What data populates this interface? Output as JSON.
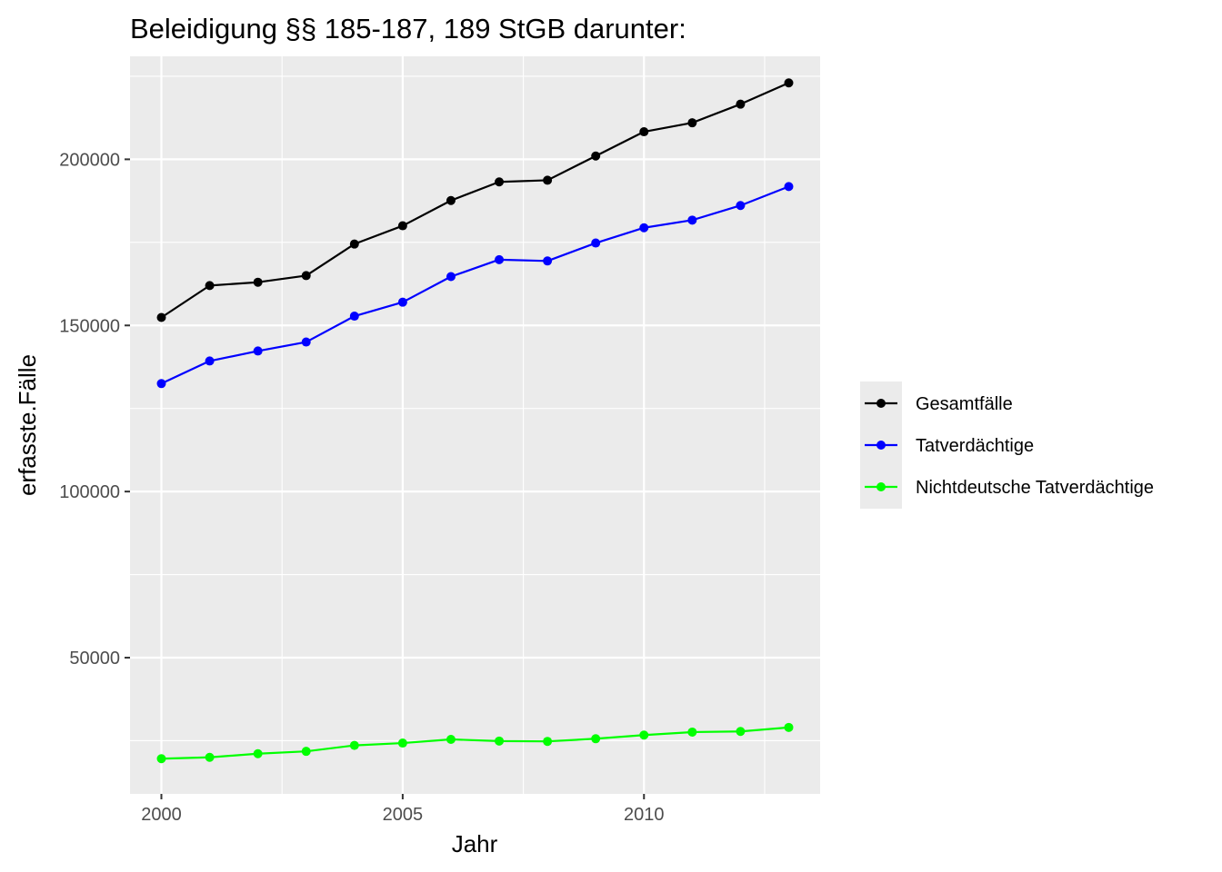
{
  "chart_data": {
    "type": "line",
    "title": "Beleidigung §§ 185-187, 189 StGB darunter:",
    "xlabel": "Jahr",
    "ylabel": "erfasste.Fälle",
    "x": [
      2000,
      2001,
      2002,
      2003,
      2004,
      2005,
      2006,
      2007,
      2008,
      2009,
      2010,
      2011,
      2012,
      2013
    ],
    "xlim": [
      1999.35,
      2013.65
    ],
    "ylim": [
      9000,
      231000
    ],
    "x_ticks": [
      {
        "value": 2000,
        "label": "2000"
      },
      {
        "value": 2005,
        "label": "2005"
      },
      {
        "value": 2010,
        "label": "2010"
      }
    ],
    "y_ticks": [
      {
        "value": 50000,
        "label": "50000"
      },
      {
        "value": 100000,
        "label": "100000"
      },
      {
        "value": 150000,
        "label": "150000"
      },
      {
        "value": 200000,
        "label": "200000"
      }
    ],
    "grid": true,
    "legend_position": "right",
    "series": [
      {
        "name": "Gesamtfälle",
        "color": "#000000",
        "values": [
          152400,
          162000,
          163000,
          165000,
          174500,
          180000,
          187600,
          193200,
          193700,
          201000,
          208300,
          211000,
          216600,
          223000
        ]
      },
      {
        "name": "Tatverdächtige",
        "color": "#0000ff",
        "values": [
          132500,
          139300,
          142300,
          145000,
          152800,
          157000,
          164700,
          169800,
          169400,
          174800,
          179400,
          181700,
          186100,
          191800
        ]
      },
      {
        "name": "Nichtdeutsche Tatverdächtige",
        "color": "#00ff00",
        "values": [
          19600,
          20000,
          21100,
          21800,
          23600,
          24300,
          25400,
          24900,
          24800,
          25600,
          26700,
          27600,
          27800,
          29000
        ]
      }
    ]
  }
}
